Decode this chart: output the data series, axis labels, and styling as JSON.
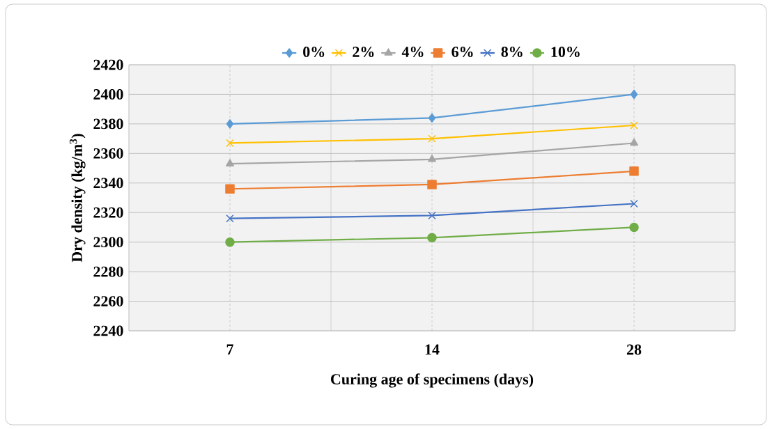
{
  "chart_data": {
    "type": "line",
    "xlabel": "Curing age of specimens (days)",
    "ylabel": "Dry density (kg/m$^{3}$)",
    "categories": [
      "7",
      "14",
      "28"
    ],
    "series": [
      {
        "name": "0%",
        "color": "#5b9bd5",
        "marker": "diamond",
        "values": [
          2380,
          2384,
          2400
        ]
      },
      {
        "name": "2%",
        "color": "#ffc000",
        "marker": "cross",
        "values": [
          2367,
          2370,
          2379
        ]
      },
      {
        "name": "4%",
        "color": "#a5a5a5",
        "marker": "triangle",
        "values": [
          2353,
          2356,
          2367
        ]
      },
      {
        "name": "6%",
        "color": "#ed7d31",
        "marker": "square",
        "values": [
          2336,
          2339,
          2348
        ]
      },
      {
        "name": "8%",
        "color": "#4472c4",
        "marker": "cross",
        "values": [
          2316,
          2318,
          2326
        ]
      },
      {
        "name": "10%",
        "color": "#70ad47",
        "marker": "circle",
        "values": [
          2300,
          2303,
          2310
        ]
      }
    ],
    "ylim": [
      2240,
      2420
    ],
    "yticks": [
      2240,
      2260,
      2280,
      2300,
      2320,
      2340,
      2360,
      2380,
      2400,
      2420
    ],
    "grid": true,
    "legend": "top",
    "line_style": "solid"
  }
}
